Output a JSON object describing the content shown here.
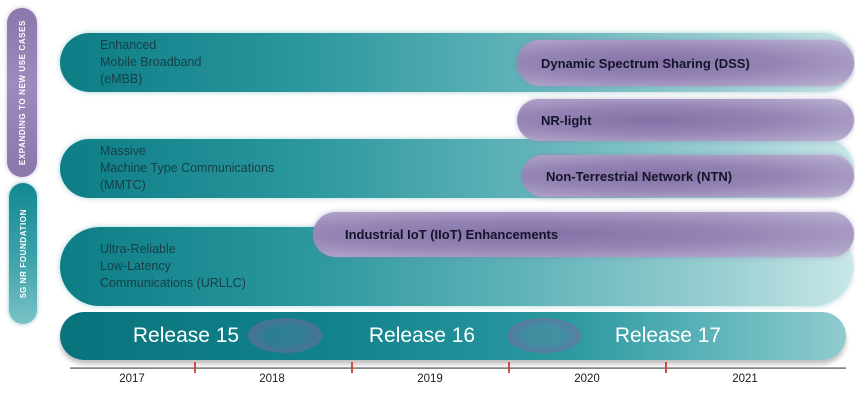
{
  "side_labels": {
    "expanding": "EXPANDING TO NEW USE CASES",
    "foundation": "5G NR FOUNDATION"
  },
  "foundation_tracks": [
    {
      "id": "embb",
      "label": "Enhanced\nMobile Broadband\n(eMBB)"
    },
    {
      "id": "mmtc",
      "label": "Massive\nMachine Type Communications\n(MMTC)"
    },
    {
      "id": "urllc",
      "label": "Ultra-Reliable\nLow-Latency\nCommunications (URLLC)"
    }
  ],
  "new_features": [
    {
      "id": "dss",
      "label": "Dynamic Spectrum Sharing (DSS)"
    },
    {
      "id": "nr-light",
      "label": "NR-light"
    },
    {
      "id": "ntn",
      "label": "Non-Terrestrial Network (NTN)"
    },
    {
      "id": "iiot",
      "label": "Industrial IoT (IIoT) Enhancements"
    }
  ],
  "releases": [
    "Release 15",
    "Release 16",
    "Release 17"
  ],
  "timeline_years": [
    "2017",
    "2018",
    "2019",
    "2020",
    "2021"
  ],
  "colors": {
    "teal_dark": "#0d7d86",
    "teal_light": "#c9e7e8",
    "purple_dark": "#8471a6",
    "purple_light": "#bfb4d2",
    "tick_red": "#d14b3f",
    "release_text": "#ffffff"
  }
}
